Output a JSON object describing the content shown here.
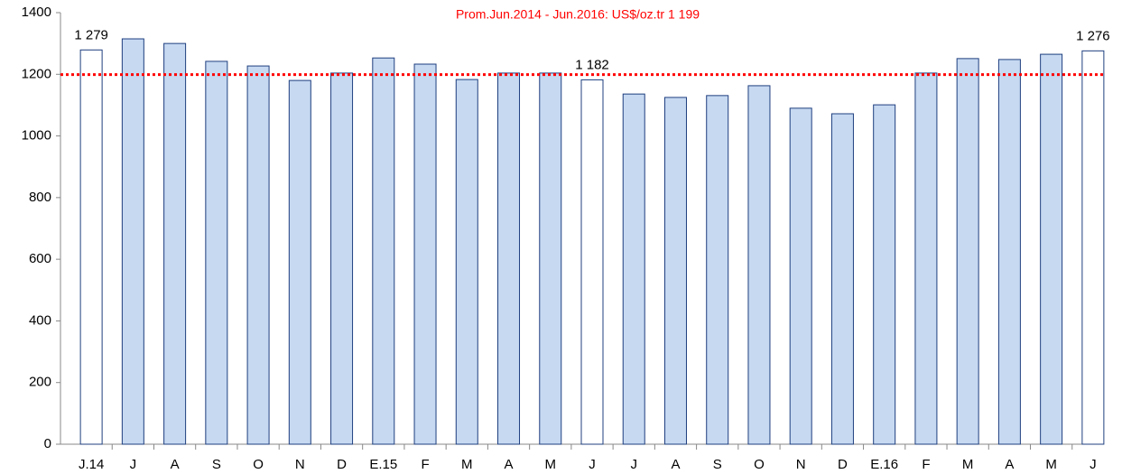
{
  "chart_data": {
    "type": "bar",
    "title": "Prom.Jun.2014 - Jun.2016: US$/oz.tr 1 199",
    "title_color": "#ff0000",
    "categories": [
      "J.14",
      "J",
      "A",
      "S",
      "O",
      "N",
      "D",
      "E.15",
      "F",
      "M",
      "A",
      "M",
      "J",
      "J",
      "A",
      "S",
      "O",
      "N",
      "D",
      "E.16",
      "F",
      "M",
      "A",
      "M",
      "J"
    ],
    "values": [
      1279,
      1315,
      1300,
      1242,
      1227,
      1180,
      1204,
      1253,
      1233,
      1183,
      1204,
      1204,
      1182,
      1136,
      1125,
      1131,
      1163,
      1090,
      1072,
      1101,
      1204,
      1251,
      1248,
      1265,
      1276
    ],
    "value_labels": [
      "1 279",
      null,
      null,
      null,
      null,
      null,
      null,
      null,
      null,
      null,
      null,
      null,
      "1 182",
      null,
      null,
      null,
      null,
      null,
      null,
      null,
      null,
      null,
      null,
      null,
      "1 276"
    ],
    "colors": [
      "#ffffff",
      "#c6d9f1",
      "#c6d9f1",
      "#c6d9f1",
      "#c6d9f1",
      "#c6d9f1",
      "#c6d9f1",
      "#c6d9f1",
      "#c6d9f1",
      "#c6d9f1",
      "#c6d9f1",
      "#c6d9f1",
      "#ffffff",
      "#c6d9f1",
      "#c6d9f1",
      "#c6d9f1",
      "#c6d9f1",
      "#c6d9f1",
      "#c6d9f1",
      "#c6d9f1",
      "#c6d9f1",
      "#c6d9f1",
      "#c6d9f1",
      "#c6d9f1",
      "#ffffff"
    ],
    "bar_edge_color": "#1f3f7f",
    "reference_line": {
      "value": 1199,
      "color": "#ff0000"
    },
    "ylim": [
      0,
      1400
    ],
    "yticks": [
      0,
      200,
      400,
      600,
      800,
      1000,
      1200,
      1400
    ],
    "grid": false
  }
}
